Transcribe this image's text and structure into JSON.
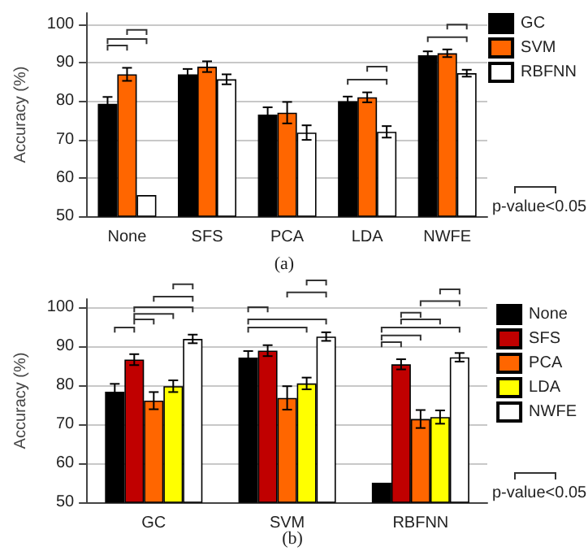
{
  "chart_data": [
    {
      "type": "bar",
      "title": "(a)",
      "ylabel": "Accuracy (%)",
      "categories": [
        "None",
        "SFS",
        "PCA",
        "LDA",
        "NWFE"
      ],
      "series": [
        {
          "name": "GC",
          "color": "#000000",
          "values": [
            79.3,
            87,
            76.5,
            80,
            92
          ],
          "errors": [
            1.8,
            1.4,
            1.9,
            1.2,
            1
          ]
        },
        {
          "name": "SVM",
          "color": "#ff6600",
          "values": [
            87,
            89,
            77,
            81,
            92.5
          ],
          "errors": [
            1.7,
            1.4,
            2.8,
            1.3,
            1
          ]
        },
        {
          "name": "RBFNN",
          "color": "#ffffff",
          "values": [
            55.5,
            85.7,
            71.8,
            72,
            87.3
          ],
          "errors": [
            null,
            1.3,
            1.9,
            1.5,
            0.9
          ]
        }
      ],
      "ylim": [
        50,
        103
      ],
      "yticks": [
        50,
        60,
        70,
        80,
        90,
        100
      ],
      "grid": "y",
      "legend": "top right",
      "annotations": [
        "p-value<0.05"
      ]
    },
    {
      "type": "bar",
      "title": "(b)",
      "ylabel": "Accuracy (%)",
      "categories": [
        "GC",
        "SVM",
        "RBFNN"
      ],
      "series": [
        {
          "name": "None",
          "color": "#000000",
          "values": [
            78.3,
            87,
            55
          ],
          "errors": [
            2,
            1.7,
            null
          ]
        },
        {
          "name": "SFS",
          "color": "#c00000",
          "values": [
            86.5,
            88.8,
            85.3
          ],
          "errors": [
            1.4,
            1.4,
            1.3
          ]
        },
        {
          "name": "PCA",
          "color": "#ff6600",
          "values": [
            76,
            76.7,
            71.3
          ],
          "errors": [
            2.2,
            3,
            2.3
          ]
        },
        {
          "name": "LDA",
          "color": "#ffff00",
          "values": [
            79.7,
            80.4,
            71.8
          ],
          "errors": [
            1.5,
            1.5,
            1.7
          ]
        },
        {
          "name": "NWFE",
          "color": "#ffffff",
          "values": [
            91.8,
            92.4,
            87.1
          ],
          "errors": [
            1.1,
            1.1,
            1.1
          ]
        }
      ],
      "ylim": [
        50,
        102
      ],
      "yticks": [
        50,
        60,
        70,
        80,
        90,
        100
      ],
      "grid": "y",
      "legend": "top right",
      "annotations": [
        "p-value<0.05"
      ]
    }
  ]
}
